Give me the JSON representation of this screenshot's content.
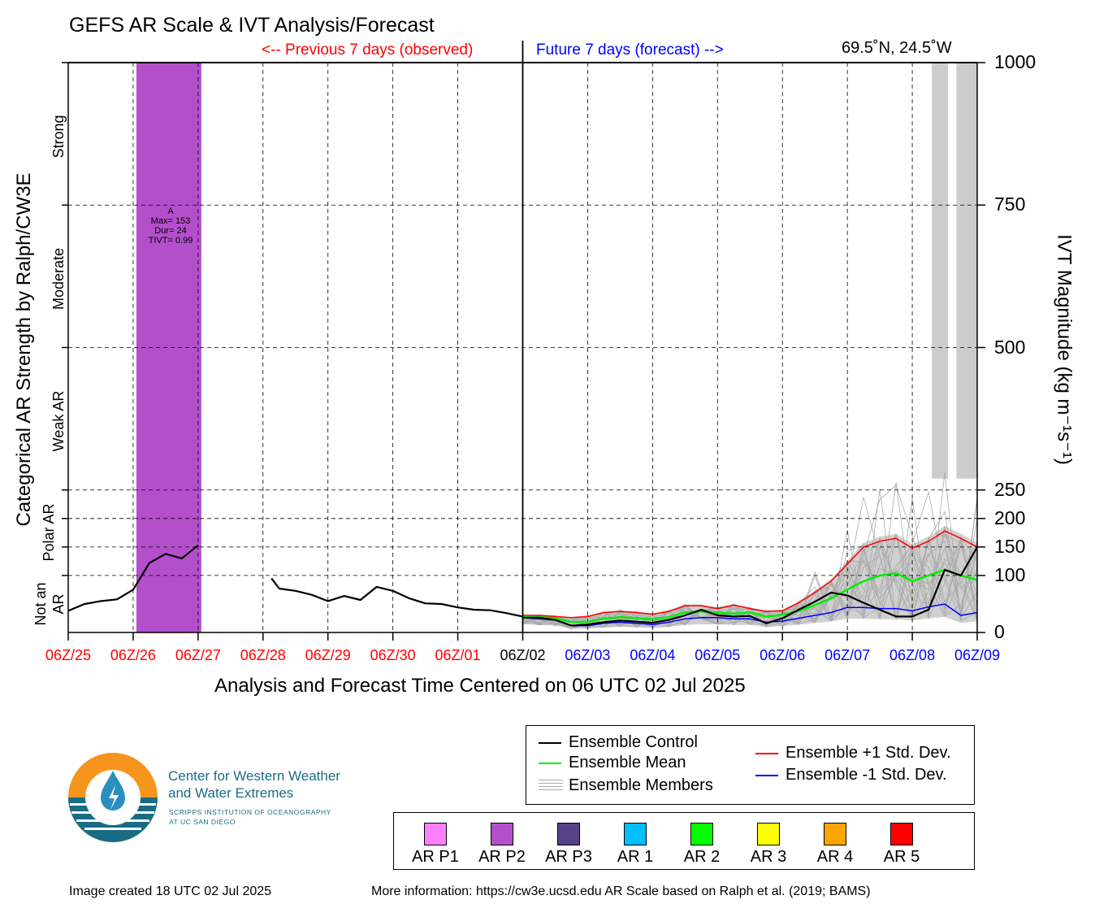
{
  "title": "GEFS AR Scale & IVT Analysis/Forecast",
  "previous_label": "<-- Previous 7 days (observed)",
  "future_label": "Future 7 days (forecast) -->",
  "location": "69.5˚N, 24.5˚W",
  "xlabel": "Analysis and Forecast Time Centered on 06 UTC 02 Jul 2025",
  "ylabel_left": "Categorical AR Strength by Ralph/CW3E",
  "ylabel_right": "IVT Magnitude (kg m⁻¹s⁻¹)",
  "categories": {
    "strong": "Strong",
    "moderate": "Moderate",
    "weak": "Weak AR",
    "polar_1": "Polar AR",
    "not_an_ar_1": "Not an",
    "not_an_ar_2": "AR"
  },
  "ar_event_box": {
    "line1": "A",
    "line2": "Max= 153",
    "line3": "Dur= 24",
    "line4": "TIVT= 0.99"
  },
  "legend": {
    "control": "Ensemble Control",
    "mean": "Ensemble Mean",
    "members": "Ensemble Members",
    "plus": "Ensemble +1 Std. Dev.",
    "minus": "Ensemble -1 Std. Dev."
  },
  "ar_scale": [
    {
      "label": "AR P1",
      "color": "#ff80ff"
    },
    {
      "label": "AR P2",
      "color": "#b44fcb"
    },
    {
      "label": "AR P3",
      "color": "#574188"
    },
    {
      "label": "AR 1",
      "color": "#00bfff"
    },
    {
      "label": "AR 2",
      "color": "#00ff00"
    },
    {
      "label": "AR 3",
      "color": "#ffff00"
    },
    {
      "label": "AR 4",
      "color": "#ffa500"
    },
    {
      "label": "AR 5",
      "color": "#ff0000"
    }
  ],
  "logo": {
    "line1": "Center for Western Weather",
    "line2": "and Water Extremes",
    "line3": "SCRIPPS INSTITUTION OF OCEANOGRAPHY",
    "line4": "AT UC SAN DIEGO"
  },
  "footer": {
    "created": "Image created 18 UTC 02 Jul 2025",
    "info": "More information: https://cw3e.ucsd.edu AR Scale based on Ralph et al. (2019; BAMS)"
  },
  "colors": {
    "observed": "#ff0000",
    "forecast": "#0000ff",
    "control": "#000000",
    "mean": "#00ee00",
    "plus": "#ff0000",
    "minus": "#0000ff",
    "members": "#aaaaaa",
    "spread": "#d0d0d0",
    "ar_p2": "#b44fcb"
  },
  "chart_data": {
    "type": "line",
    "title": "GEFS AR Scale & IVT Analysis/Forecast",
    "xlabel": "Analysis and Forecast Time Centered on 06 UTC 02 Jul 2025",
    "ylabel": "IVT Magnitude (kg m⁻¹s⁻¹)",
    "x_unit": "days relative to 06Z/02",
    "xlim": [
      -7,
      7
    ],
    "x_ticks": [
      {
        "label": "06Z/25",
        "x": -7,
        "period": "observed"
      },
      {
        "label": "06Z/26",
        "x": -6,
        "period": "observed"
      },
      {
        "label": "06Z/27",
        "x": -5,
        "period": "observed"
      },
      {
        "label": "06Z/28",
        "x": -4,
        "period": "observed"
      },
      {
        "label": "06Z/29",
        "x": -3,
        "period": "observed"
      },
      {
        "label": "06Z/30",
        "x": -2,
        "period": "observed"
      },
      {
        "label": "06Z/01",
        "x": -1,
        "period": "observed"
      },
      {
        "label": "06Z/02",
        "x": 0,
        "period": "now"
      },
      {
        "label": "06Z/03",
        "x": 1,
        "period": "forecast"
      },
      {
        "label": "06Z/04",
        "x": 2,
        "period": "forecast"
      },
      {
        "label": "06Z/05",
        "x": 3,
        "period": "forecast"
      },
      {
        "label": "06Z/06",
        "x": 4,
        "period": "forecast"
      },
      {
        "label": "06Z/07",
        "x": 5,
        "period": "forecast"
      },
      {
        "label": "06Z/08",
        "x": 6,
        "period": "forecast"
      },
      {
        "label": "06Z/09",
        "x": 7,
        "period": "forecast"
      }
    ],
    "y_ticks": [
      0,
      100,
      150,
      200,
      250,
      500,
      750,
      1000
    ],
    "category_thresholds": [
      100,
      150,
      200,
      250,
      500,
      750
    ],
    "ylim": [
      0,
      1000
    ],
    "grid": true,
    "ar_events": [
      {
        "x_start": -5.95,
        "x_end": -4.95,
        "category": "AR P2",
        "max": 153,
        "duration_h": 24,
        "tivt": 0.99
      }
    ],
    "gray_bars": [
      {
        "x_start": 6.3,
        "x_end": 6.55,
        "ivt_top": 270
      },
      {
        "x_start": 6.68,
        "x_end": 7.0,
        "ivt_top": 270
      }
    ],
    "series": [
      {
        "name": "Ensemble Control",
        "segments": [
          [
            [
              -7.0,
              38
            ],
            [
              -6.75,
              50
            ],
            [
              -6.5,
              55
            ],
            [
              -6.25,
              58
            ],
            [
              -6.0,
              75
            ],
            [
              -5.75,
              122
            ],
            [
              -5.5,
              138
            ],
            [
              -5.25,
              130
            ],
            [
              -5.0,
              153
            ]
          ],
          [
            [
              -3.87,
              95
            ],
            [
              -3.75,
              77
            ],
            [
              -3.5,
              73
            ],
            [
              -3.25,
              66
            ],
            [
              -3.0,
              55
            ],
            [
              -2.75,
              64
            ],
            [
              -2.5,
              57
            ],
            [
              -2.25,
              80
            ],
            [
              -2.0,
              73
            ],
            [
              -1.75,
              60
            ],
            [
              -1.5,
              51
            ],
            [
              -1.25,
              50
            ],
            [
              -1.0,
              44
            ],
            [
              -0.75,
              40
            ],
            [
              -0.5,
              39
            ],
            [
              -0.25,
              34
            ],
            [
              0.0,
              28
            ]
          ],
          [
            [
              0,
              26
            ],
            [
              0.25,
              26
            ],
            [
              0.5,
              22
            ],
            [
              0.75,
              12
            ],
            [
              1.0,
              14
            ],
            [
              1.25,
              18
            ],
            [
              1.5,
              21
            ],
            [
              1.75,
              19
            ],
            [
              2.0,
              17
            ],
            [
              2.25,
              22
            ],
            [
              2.5,
              30
            ],
            [
              2.75,
              40
            ],
            [
              3.0,
              30
            ],
            [
              3.25,
              28
            ],
            [
              3.5,
              29
            ],
            [
              3.75,
              16
            ],
            [
              4.0,
              25
            ],
            [
              4.25,
              40
            ],
            [
              4.5,
              54
            ],
            [
              4.75,
              70
            ],
            [
              5.0,
              65
            ],
            [
              5.25,
              52
            ],
            [
              5.5,
              40
            ],
            [
              5.75,
              28
            ],
            [
              6.0,
              28
            ],
            [
              6.25,
              40
            ],
            [
              6.5,
              110
            ],
            [
              6.75,
              100
            ],
            [
              7.0,
              150
            ]
          ]
        ]
      },
      {
        "name": "Ensemble Mean",
        "points": [
          [
            0,
            28
          ],
          [
            0.25,
            27
          ],
          [
            0.5,
            25
          ],
          [
            0.75,
            18
          ],
          [
            1.0,
            19
          ],
          [
            1.25,
            24
          ],
          [
            1.5,
            27
          ],
          [
            1.75,
            25
          ],
          [
            2.0,
            23
          ],
          [
            2.25,
            27
          ],
          [
            2.5,
            35
          ],
          [
            2.75,
            37
          ],
          [
            3.0,
            35
          ],
          [
            3.25,
            33
          ],
          [
            3.5,
            35
          ],
          [
            3.75,
            28
          ],
          [
            4.0,
            31
          ],
          [
            4.25,
            38
          ],
          [
            4.5,
            48
          ],
          [
            4.75,
            60
          ],
          [
            5.0,
            75
          ],
          [
            5.25,
            90
          ],
          [
            5.5,
            100
          ],
          [
            5.75,
            104
          ],
          [
            6.0,
            90
          ],
          [
            6.25,
            100
          ],
          [
            6.5,
            110
          ],
          [
            6.75,
            100
          ],
          [
            7.0,
            92
          ]
        ]
      },
      {
        "name": "Ensemble +1 Std. Dev.",
        "points": [
          [
            0,
            30
          ],
          [
            0.25,
            30
          ],
          [
            0.5,
            28
          ],
          [
            0.75,
            26
          ],
          [
            1.0,
            28
          ],
          [
            1.25,
            35
          ],
          [
            1.5,
            37
          ],
          [
            1.75,
            35
          ],
          [
            2.0,
            32
          ],
          [
            2.25,
            37
          ],
          [
            2.5,
            47
          ],
          [
            2.75,
            47
          ],
          [
            3.0,
            42
          ],
          [
            3.25,
            48
          ],
          [
            3.5,
            42
          ],
          [
            3.75,
            37
          ],
          [
            4.0,
            38
          ],
          [
            4.25,
            52
          ],
          [
            4.5,
            70
          ],
          [
            4.75,
            90
          ],
          [
            5.0,
            120
          ],
          [
            5.25,
            150
          ],
          [
            5.5,
            160
          ],
          [
            5.75,
            165
          ],
          [
            6.0,
            148
          ],
          [
            6.25,
            160
          ],
          [
            6.5,
            178
          ],
          [
            6.75,
            165
          ],
          [
            7.0,
            150
          ]
        ]
      },
      {
        "name": "Ensemble -1 Std. Dev.",
        "points": [
          [
            0,
            26
          ],
          [
            0.25,
            24
          ],
          [
            0.5,
            22
          ],
          [
            0.75,
            12
          ],
          [
            1.0,
            12
          ],
          [
            1.25,
            16
          ],
          [
            1.5,
            18
          ],
          [
            1.75,
            16
          ],
          [
            2.0,
            14
          ],
          [
            2.25,
            18
          ],
          [
            2.5,
            24
          ],
          [
            2.75,
            26
          ],
          [
            3.0,
            26
          ],
          [
            3.25,
            24
          ],
          [
            3.5,
            24
          ],
          [
            3.75,
            18
          ],
          [
            4.0,
            20
          ],
          [
            4.25,
            25
          ],
          [
            4.5,
            30
          ],
          [
            4.75,
            35
          ],
          [
            5.0,
            44
          ],
          [
            5.25,
            44
          ],
          [
            5.5,
            42
          ],
          [
            5.75,
            42
          ],
          [
            6.0,
            38
          ],
          [
            6.25,
            45
          ],
          [
            6.5,
            50
          ],
          [
            6.75,
            30
          ],
          [
            7.0,
            35
          ]
        ]
      }
    ]
  }
}
